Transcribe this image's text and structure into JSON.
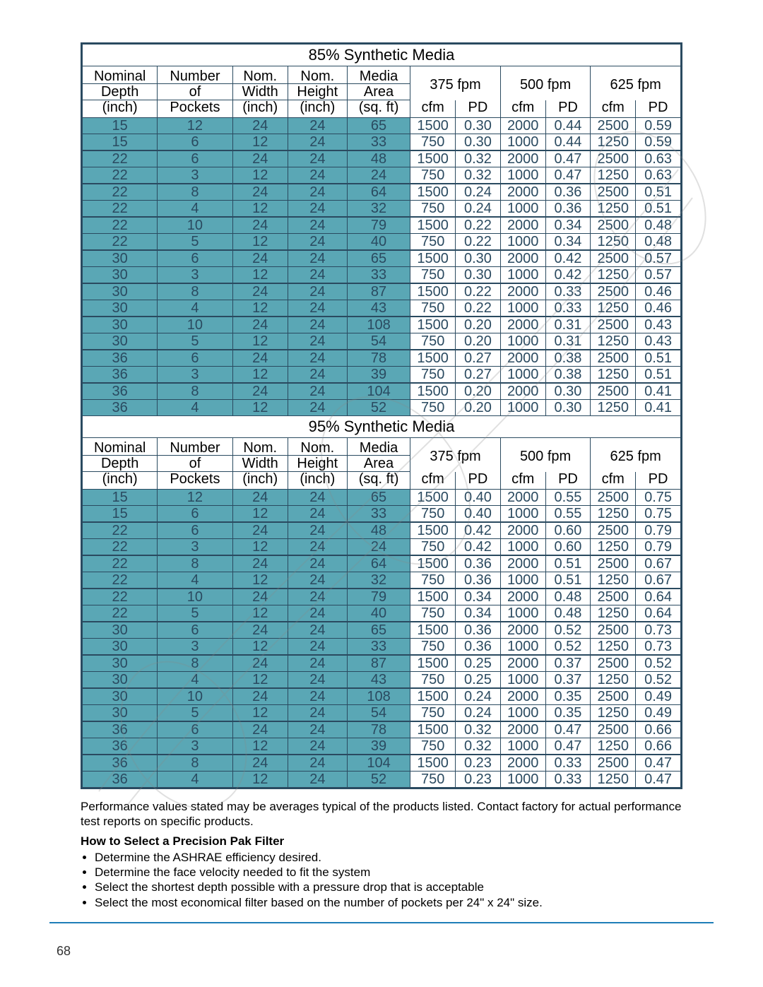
{
  "page_number": "68",
  "table_border_color": "#2a4a60",
  "zebra_color": "#5aa7b5",
  "data_text_color": "#2a4a60",
  "hr_color": "#1e7db8",
  "sections": [
    {
      "title": "85% Synthetic Media"
    },
    {
      "title": "95% Synthetic Media"
    }
  ],
  "header": {
    "col1_top": "Nominal",
    "col1_mid": "Depth",
    "col1_bot": "(inch)",
    "col2_top": "Number",
    "col2_mid": "of",
    "col2_bot": "Pockets",
    "col3_top": "Nom.",
    "col3_mid": "Width",
    "col3_bot": "(inch)",
    "col4_top": "Nom.",
    "col4_mid": "Height",
    "col4_bot": "(inch)",
    "col5_top": "Media",
    "col5_mid": "Area",
    "col5_bot": "(sq. ft)",
    "g1": "375 fpm",
    "g2": "500 fpm",
    "g3": "625 fpm",
    "sub_cfm": "cfm",
    "sub_pd": "PD"
  },
  "rows85": [
    {
      "sep": false,
      "d": "15",
      "p": "12",
      "w": "24",
      "h": "24",
      "a": "65",
      "c1": "1500",
      "p1": "0.30",
      "c2": "2000",
      "p2": "0.44",
      "c3": "2500",
      "p3": "0.59"
    },
    {
      "sep": false,
      "d": "15",
      "p": "6",
      "w": "12",
      "h": "24",
      "a": "33",
      "c1": "750",
      "p1": "0.30",
      "c2": "1000",
      "p2": "0.44",
      "c3": "1250",
      "p3": "0.59"
    },
    {
      "sep": true,
      "d": "22",
      "p": "6",
      "w": "24",
      "h": "24",
      "a": "48",
      "c1": "1500",
      "p1": "0.32",
      "c2": "2000",
      "p2": "0.47",
      "c3": "2500",
      "p3": "0.63"
    },
    {
      "sep": false,
      "d": "22",
      "p": "3",
      "w": "12",
      "h": "24",
      "a": "24",
      "c1": "750",
      "p1": "0.32",
      "c2": "1000",
      "p2": "0.47",
      "c3": "1250",
      "p3": "0.63"
    },
    {
      "sep": true,
      "d": "22",
      "p": "8",
      "w": "24",
      "h": "24",
      "a": "64",
      "c1": "1500",
      "p1": "0.24",
      "c2": "2000",
      "p2": "0.36",
      "c3": "2500",
      "p3": "0.51"
    },
    {
      "sep": false,
      "d": "22",
      "p": "4",
      "w": "12",
      "h": "24",
      "a": "32",
      "c1": "750",
      "p1": "0.24",
      "c2": "1000",
      "p2": "0.36",
      "c3": "1250",
      "p3": "0.51"
    },
    {
      "sep": true,
      "d": "22",
      "p": "10",
      "w": "24",
      "h": "24",
      "a": "79",
      "c1": "1500",
      "p1": "0.22",
      "c2": "2000",
      "p2": "0.34",
      "c3": "2500",
      "p3": "0.48"
    },
    {
      "sep": false,
      "d": "22",
      "p": "5",
      "w": "12",
      "h": "24",
      "a": "40",
      "c1": "750",
      "p1": "0.22",
      "c2": "1000",
      "p2": "0.34",
      "c3": "1250",
      "p3": "0.48"
    },
    {
      "sep": true,
      "d": "30",
      "p": "6",
      "w": "24",
      "h": "24",
      "a": "65",
      "c1": "1500",
      "p1": "0.30",
      "c2": "2000",
      "p2": "0.42",
      "c3": "2500",
      "p3": "0.57"
    },
    {
      "sep": false,
      "d": "30",
      "p": "3",
      "w": "12",
      "h": "24",
      "a": "33",
      "c1": "750",
      "p1": "0.30",
      "c2": "1000",
      "p2": "0.42",
      "c3": "1250",
      "p3": "0.57"
    },
    {
      "sep": true,
      "d": "30",
      "p": "8",
      "w": "24",
      "h": "24",
      "a": "87",
      "c1": "1500",
      "p1": "0.22",
      "c2": "2000",
      "p2": "0.33",
      "c3": "2500",
      "p3": "0.46"
    },
    {
      "sep": false,
      "d": "30",
      "p": "4",
      "w": "12",
      "h": "24",
      "a": "43",
      "c1": "750",
      "p1": "0.22",
      "c2": "1000",
      "p2": "0.33",
      "c3": "1250",
      "p3": "0.46"
    },
    {
      "sep": true,
      "d": "30",
      "p": "10",
      "w": "24",
      "h": "24",
      "a": "108",
      "c1": "1500",
      "p1": "0.20",
      "c2": "2000",
      "p2": "0.31",
      "c3": "2500",
      "p3": "0.43"
    },
    {
      "sep": false,
      "d": "30",
      "p": "5",
      "w": "12",
      "h": "24",
      "a": "54",
      "c1": "750",
      "p1": "0.20",
      "c2": "1000",
      "p2": "0.31",
      "c3": "1250",
      "p3": "0.43"
    },
    {
      "sep": true,
      "d": "36",
      "p": "6",
      "w": "24",
      "h": "24",
      "a": "78",
      "c1": "1500",
      "p1": "0.27",
      "c2": "2000",
      "p2": "0.38",
      "c3": "2500",
      "p3": "0.51"
    },
    {
      "sep": false,
      "d": "36",
      "p": "3",
      "w": "12",
      "h": "24",
      "a": "39",
      "c1": "750",
      "p1": "0.27",
      "c2": "1000",
      "p2": "0.38",
      "c3": "1250",
      "p3": "0.51"
    },
    {
      "sep": true,
      "d": "36",
      "p": "8",
      "w": "24",
      "h": "24",
      "a": "104",
      "c1": "1500",
      "p1": "0.20",
      "c2": "2000",
      "p2": "0.30",
      "c3": "2500",
      "p3": "0.41"
    },
    {
      "sep": false,
      "d": "36",
      "p": "4",
      "w": "12",
      "h": "24",
      "a": "52",
      "c1": "750",
      "p1": "0.20",
      "c2": "1000",
      "p2": "0.30",
      "c3": "1250",
      "p3": "0.41"
    }
  ],
  "rows95": [
    {
      "sep": false,
      "d": "15",
      "p": "12",
      "w": "24",
      "h": "24",
      "a": "65",
      "c1": "1500",
      "p1": "0.40",
      "c2": "2000",
      "p2": "0.55",
      "c3": "2500",
      "p3": "0.75"
    },
    {
      "sep": false,
      "d": "15",
      "p": "6",
      "w": "12",
      "h": "24",
      "a": "33",
      "c1": "750",
      "p1": "0.40",
      "c2": "1000",
      "p2": "0.55",
      "c3": "1250",
      "p3": "0.75"
    },
    {
      "sep": true,
      "d": "22",
      "p": "6",
      "w": "24",
      "h": "24",
      "a": "48",
      "c1": "1500",
      "p1": "0.42",
      "c2": "2000",
      "p2": "0.60",
      "c3": "2500",
      "p3": "0.79"
    },
    {
      "sep": false,
      "d": "22",
      "p": "3",
      "w": "12",
      "h": "24",
      "a": "24",
      "c1": "750",
      "p1": "0.42",
      "c2": "1000",
      "p2": "0.60",
      "c3": "1250",
      "p3": "0.79"
    },
    {
      "sep": true,
      "d": "22",
      "p": "8",
      "w": "24",
      "h": "24",
      "a": "64",
      "c1": "1500",
      "p1": "0.36",
      "c2": "2000",
      "p2": "0.51",
      "c3": "2500",
      "p3": "0.67"
    },
    {
      "sep": false,
      "d": "22",
      "p": "4",
      "w": "12",
      "h": "24",
      "a": "32",
      "c1": "750",
      "p1": "0.36",
      "c2": "1000",
      "p2": "0.51",
      "c3": "1250",
      "p3": "0.67"
    },
    {
      "sep": true,
      "d": "22",
      "p": "10",
      "w": "24",
      "h": "24",
      "a": "79",
      "c1": "1500",
      "p1": "0.34",
      "c2": "2000",
      "p2": "0.48",
      "c3": "2500",
      "p3": "0.64"
    },
    {
      "sep": false,
      "d": "22",
      "p": "5",
      "w": "12",
      "h": "24",
      "a": "40",
      "c1": "750",
      "p1": "0.34",
      "c2": "1000",
      "p2": "0.48",
      "c3": "1250",
      "p3": "0.64"
    },
    {
      "sep": true,
      "d": "30",
      "p": "6",
      "w": "24",
      "h": "24",
      "a": "65",
      "c1": "1500",
      "p1": "0.36",
      "c2": "2000",
      "p2": "0.52",
      "c3": "2500",
      "p3": "0.73"
    },
    {
      "sep": false,
      "d": "30",
      "p": "3",
      "w": "12",
      "h": "24",
      "a": "33",
      "c1": "750",
      "p1": "0.36",
      "c2": "1000",
      "p2": "0.52",
      "c3": "1250",
      "p3": "0.73"
    },
    {
      "sep": true,
      "d": "30",
      "p": "8",
      "w": "24",
      "h": "24",
      "a": "87",
      "c1": "1500",
      "p1": "0.25",
      "c2": "2000",
      "p2": "0.37",
      "c3": "2500",
      "p3": "0.52"
    },
    {
      "sep": false,
      "d": "30",
      "p": "4",
      "w": "12",
      "h": "24",
      "a": "43",
      "c1": "750",
      "p1": "0.25",
      "c2": "1000",
      "p2": "0.37",
      "c3": "1250",
      "p3": "0.52"
    },
    {
      "sep": true,
      "d": "30",
      "p": "10",
      "w": "24",
      "h": "24",
      "a": "108",
      "c1": "1500",
      "p1": "0.24",
      "c2": "2000",
      "p2": "0.35",
      "c3": "2500",
      "p3": "0.49"
    },
    {
      "sep": false,
      "d": "30",
      "p": "5",
      "w": "12",
      "h": "24",
      "a": "54",
      "c1": "750",
      "p1": "0.24",
      "c2": "1000",
      "p2": "0.35",
      "c3": "1250",
      "p3": "0.49"
    },
    {
      "sep": true,
      "d": "36",
      "p": "6",
      "w": "24",
      "h": "24",
      "a": "78",
      "c1": "1500",
      "p1": "0.32",
      "c2": "2000",
      "p2": "0.47",
      "c3": "2500",
      "p3": "0.66"
    },
    {
      "sep": false,
      "d": "36",
      "p": "3",
      "w": "12",
      "h": "24",
      "a": "39",
      "c1": "750",
      "p1": "0.32",
      "c2": "1000",
      "p2": "0.47",
      "c3": "1250",
      "p3": "0.66"
    },
    {
      "sep": true,
      "d": "36",
      "p": "8",
      "w": "24",
      "h": "24",
      "a": "104",
      "c1": "1500",
      "p1": "0.23",
      "c2": "2000",
      "p2": "0.33",
      "c3": "2500",
      "p3": "0.47"
    },
    {
      "sep": false,
      "d": "36",
      "p": "4",
      "w": "12",
      "h": "24",
      "a": "52",
      "c1": "750",
      "p1": "0.23",
      "c2": "1000",
      "p2": "0.33",
      "c3": "1250",
      "p3": "0.47"
    }
  ],
  "notes": {
    "disclaimer": "Performance values stated may be averages typical of the products listed. Contact factory for actual performance test reports on specific products.",
    "howto_title": "How to Select a Precision Pak Filter",
    "bullets": [
      "Determine the ASHRAE efficiency desired.",
      "Determine the face velocity needed to fit the system",
      "Select the shortest depth possible with a pressure drop that is acceptable",
      "Select the most economical filter based on the number of pockets per 24\" x 24\" size."
    ]
  }
}
